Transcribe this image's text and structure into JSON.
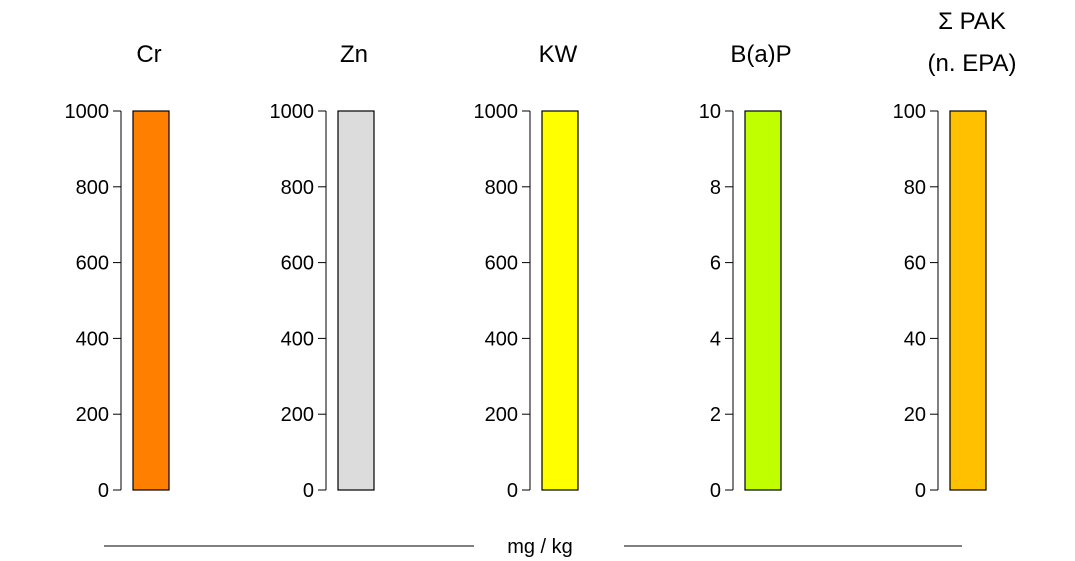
{
  "unit_label": "mg / kg",
  "chart_data": [
    {
      "type": "bar",
      "title_lines": [
        "Cr"
      ],
      "ylim": [
        0,
        1000
      ],
      "ticks": [
        0,
        200,
        400,
        600,
        800,
        1000
      ],
      "tick_labels": [
        "0",
        "200",
        "400",
        "600",
        "800",
        "1000"
      ],
      "value": 1000,
      "color": "#FF8000"
    },
    {
      "type": "bar",
      "title_lines": [
        "Zn"
      ],
      "ylim": [
        0,
        1000
      ],
      "ticks": [
        0,
        200,
        400,
        600,
        800,
        1000
      ],
      "tick_labels": [
        "0",
        "200",
        "400",
        "600",
        "800",
        "1000"
      ],
      "value": 1000,
      "color": "#DCDCDC"
    },
    {
      "type": "bar",
      "title_lines": [
        "KW"
      ],
      "ylim": [
        0,
        1000
      ],
      "ticks": [
        0,
        200,
        400,
        600,
        800,
        1000
      ],
      "tick_labels": [
        "0",
        "200",
        "400",
        "600",
        "800",
        "1000"
      ],
      "value": 1000,
      "color": "#FFFF00"
    },
    {
      "type": "bar",
      "title_lines": [
        "B(a)P"
      ],
      "ylim": [
        0,
        10
      ],
      "ticks": [
        0,
        2,
        4,
        6,
        8,
        10
      ],
      "tick_labels": [
        "0",
        "2",
        "4",
        "6",
        "8",
        "10"
      ],
      "value": 10,
      "color": "#BFFF00"
    },
    {
      "type": "bar",
      "title_lines": [
        "Σ PAK",
        "(n. EPA)"
      ],
      "ylim": [
        0,
        100
      ],
      "ticks": [
        0,
        20,
        40,
        60,
        80,
        100
      ],
      "tick_labels": [
        "0",
        "20",
        "40",
        "60",
        "80",
        "100"
      ],
      "value": 100,
      "color": "#FFC000"
    }
  ]
}
